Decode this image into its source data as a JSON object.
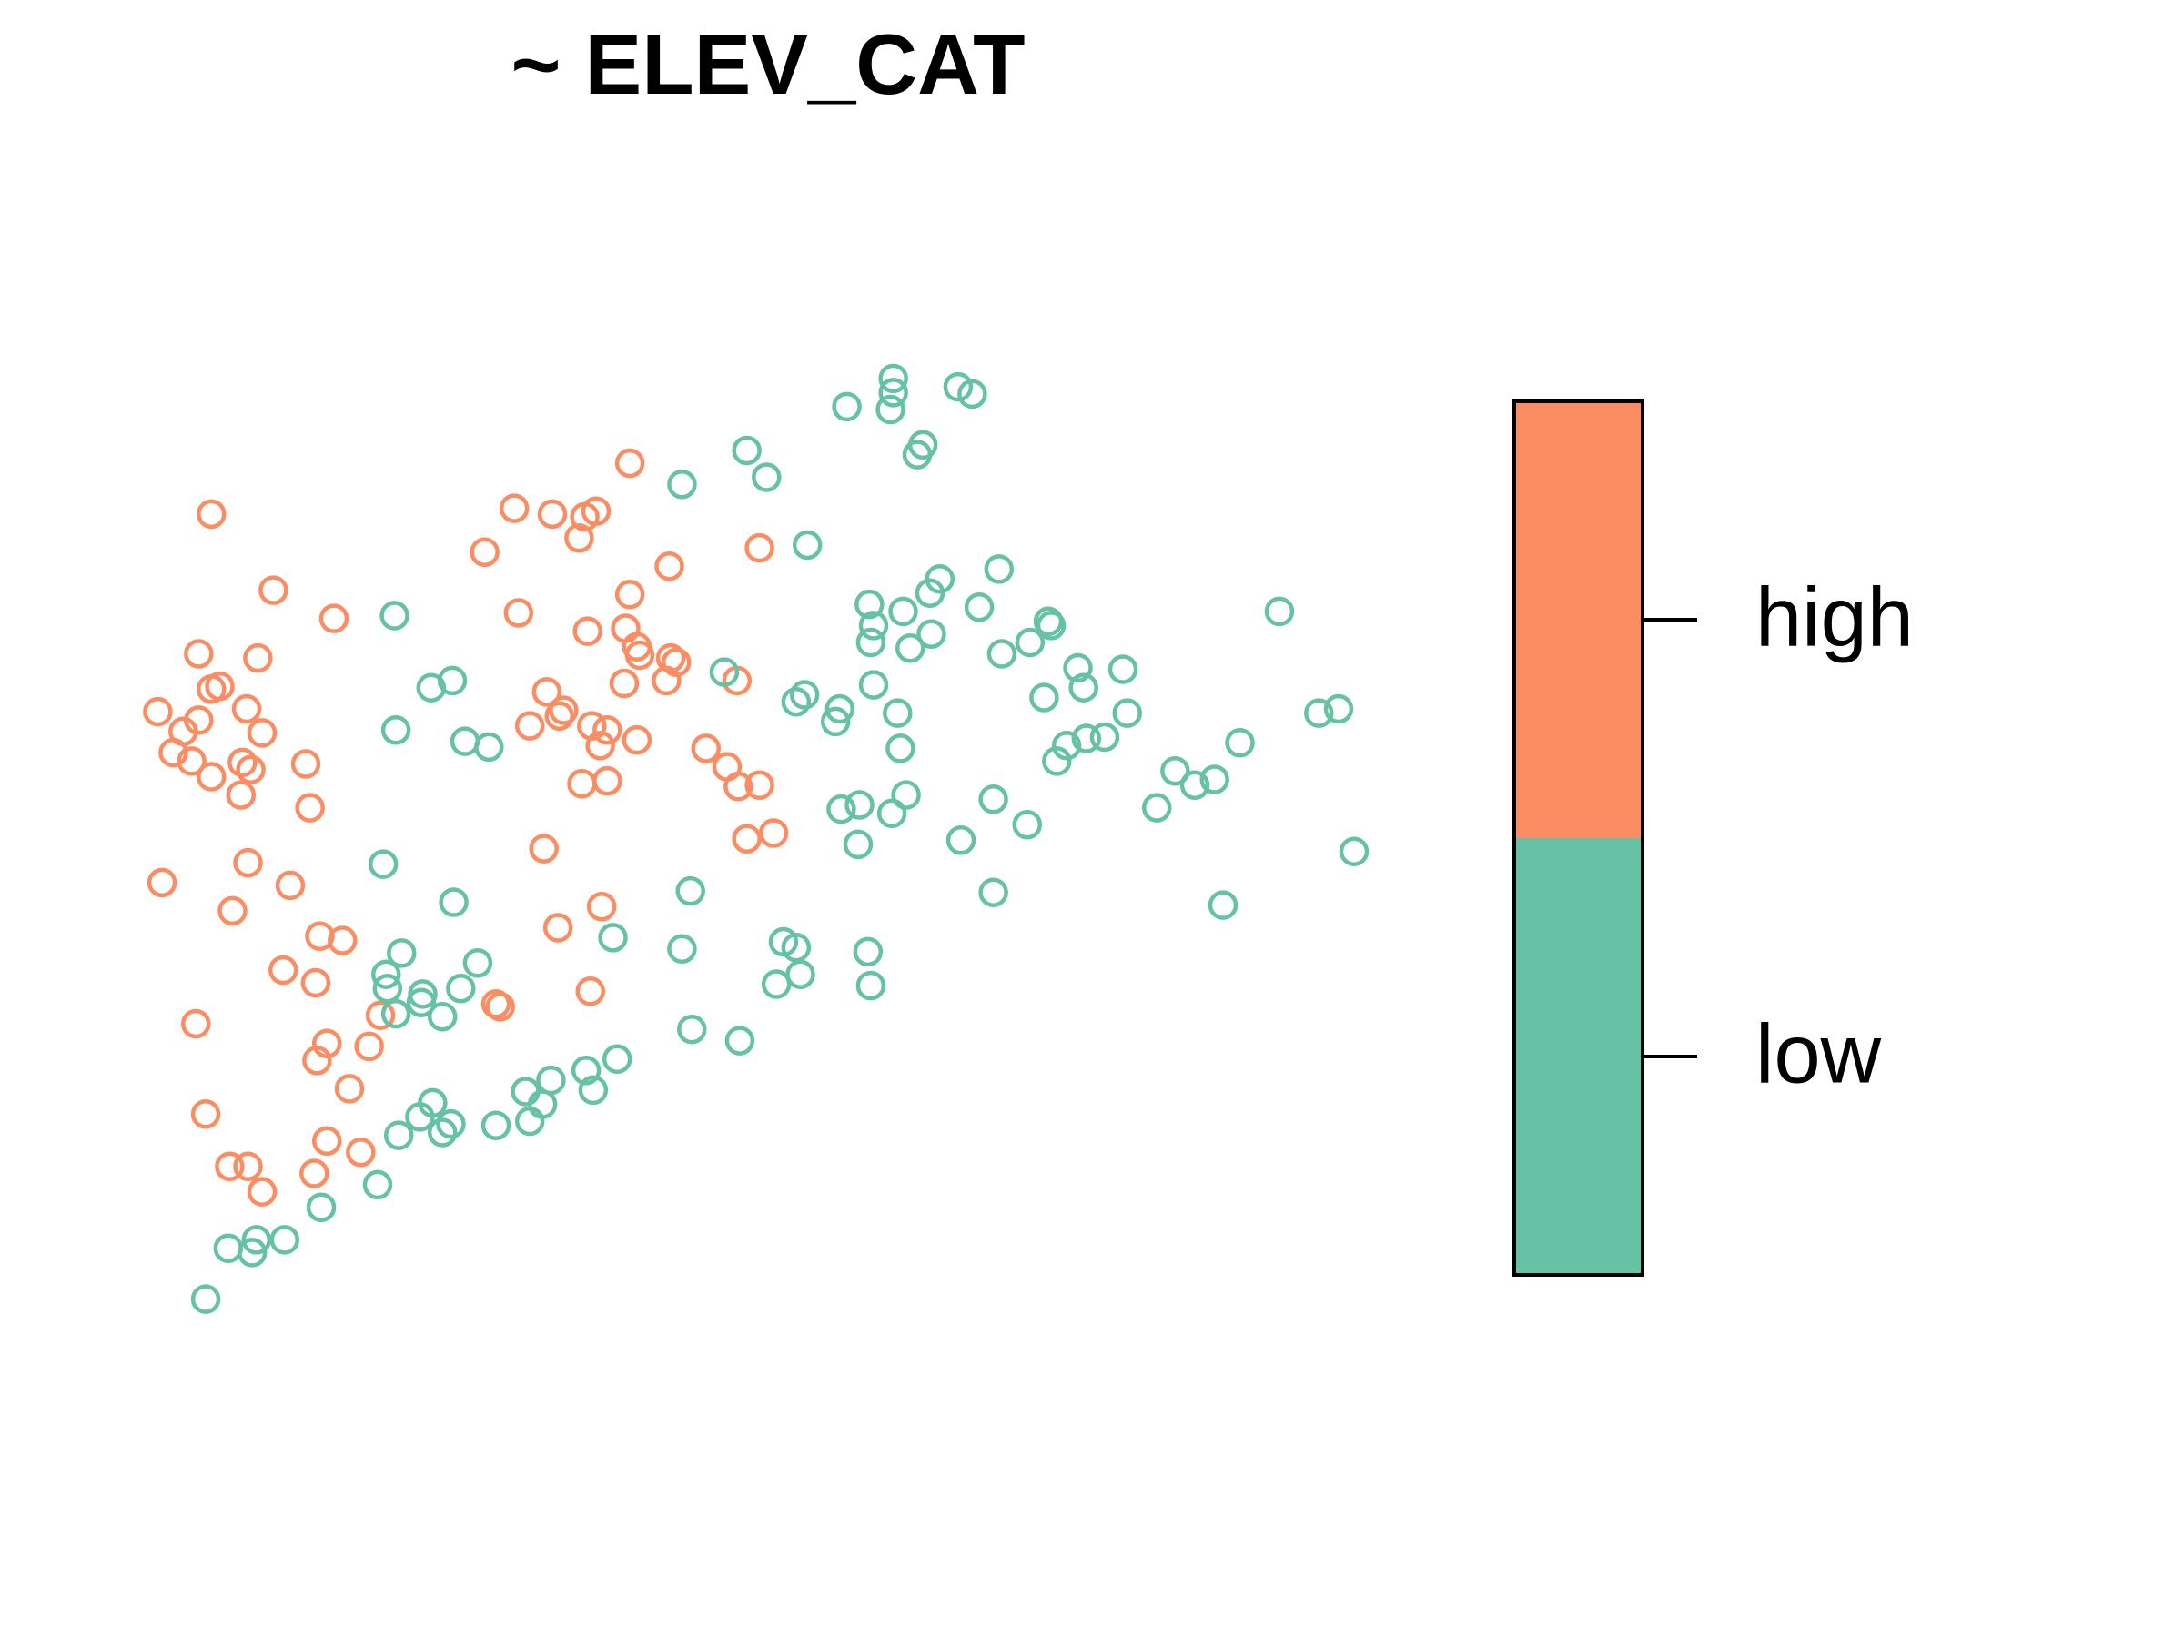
{
  "chart_data": {
    "type": "scatter",
    "title": "~ ELEV_CAT",
    "xlim": [
      0,
      1550
    ],
    "ylim": [
      -160,
      1000
    ],
    "series": [
      {
        "name": "high",
        "color": "#fc8d62",
        "x": [
          150,
          447,
          365,
          392,
          423,
          415,
          411,
          344,
          539,
          475,
          194,
          237,
          368,
          447,
          417,
          444,
          452,
          454,
          476,
          480,
          141,
          183,
          150,
          156,
          112,
          141,
          175,
          130,
          186,
          123,
          136,
          150,
          172,
          178,
          171,
          217,
          220,
          443,
          473,
          388,
          400,
          397,
          376,
          420,
          431,
          426,
          452,
          523,
          501,
          516,
          524,
          539,
          413,
          431,
          530,
          549,
          386,
          176,
          115,
          206,
          165,
          427,
          396,
          227,
          243,
          201,
          224,
          419,
          352,
          355,
          139,
          270,
          262,
          232,
          225,
          248,
          146,
          232,
          256,
          163,
          176,
          223,
          186
        ],
        "y": [
          636,
          672,
          640,
          636,
          638,
          634,
          619,
          609,
          612,
          599,
          582,
          562,
          566,
          579,
          553,
          555,
          542,
          536,
          534,
          531,
          537,
          534,
          512,
          514,
          496,
          490,
          498,
          482,
          481,
          467,
          461,
          450,
          460,
          455,
          437,
          459,
          428,
          516,
          518,
          510,
          497,
          493,
          486,
          486,
          483,
          472,
          476,
          518,
          470,
          457,
          443,
          444,
          445,
          447,
          406,
          410,
          399,
          389,
          375,
          373,
          355,
          358,
          343,
          337,
          334,
          313,
          304,
          298,
          289,
          287,
          275,
          281,
          259,
          261,
          249,
          229,
          211,
          192,
          184,
          174,
          174,
          169,
          156
        ]
      },
      {
        "name": "low",
        "color": "#66c2a5",
        "x": [
          634,
          634,
          632,
          601,
          680,
          690,
          655,
          651,
          530,
          544,
          484,
          573,
          709,
          667,
          660,
          695,
          617,
          641,
          620,
          618,
          646,
          661,
          744,
          746,
          731,
          711,
          908,
          280,
          514,
          306,
          321,
          620,
          571,
          565,
          596,
          593,
          637,
          741,
          765,
          769,
          797,
          800,
          639,
          757,
          750,
          771,
          784,
          936,
          950,
          281,
          330,
          347,
          880,
          834,
          848,
          862,
          821,
          597,
          610,
          633,
          643,
          705,
          729,
          682,
          609,
          961,
          272,
          322,
          490,
          705,
          868,
          435,
          484,
          556,
          565,
          616,
          285,
          339,
          274,
          275,
          300,
          299,
          327,
          314,
          281,
          551,
          568,
          618,
          491,
          525,
          438,
          416,
          391,
          373,
          385,
          421,
          307,
          298,
          320,
          314,
          352,
          376,
          283,
          268,
          228,
          162,
          182,
          179,
          202,
          146
        ],
        "y": [
          732,
          722,
          710,
          712,
          726,
          721,
          685,
          678,
          681,
          662,
          657,
          614,
          597,
          590,
          580,
          570,
          572,
          567,
          557,
          545,
          541,
          551,
          560,
          557,
          545,
          537,
          567,
          564,
          524,
          513,
          518,
          515,
          508,
          503,
          498,
          489,
          495,
          506,
          527,
          513,
          526,
          495,
          470,
          472,
          461,
          477,
          478,
          495,
          498,
          483,
          475,
          471,
          474,
          454,
          444,
          448,
          428,
          427,
          430,
          424,
          437,
          434,
          416,
          405,
          402,
          397,
          388,
          361,
          369,
          368,
          359,
          336,
          328,
          333,
          329,
          326,
          325,
          318,
          310,
          300,
          296,
          290,
          300,
          280,
          282,
          303,
          310,
          302,
          271,
          263,
          250,
          242,
          235,
          227,
          218,
          228,
          219,
          209,
          204,
          198,
          203,
          206,
          196,
          161,
          145,
          116,
          122,
          113,
          122,
          80
        ]
      }
    ]
  }
}
